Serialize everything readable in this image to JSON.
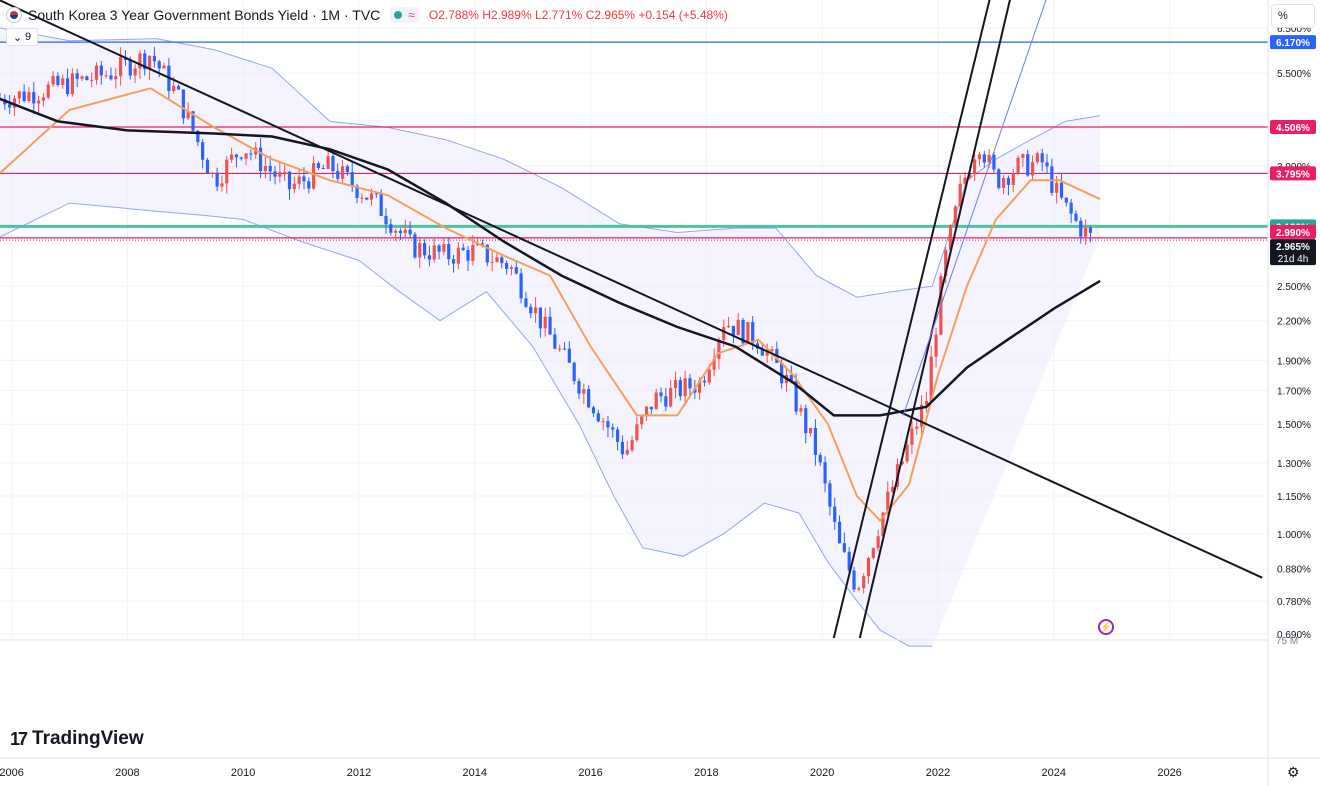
{
  "header": {
    "title": "South Korea 3 Year Government Bonds Yield · 1M · TVC",
    "open_label": "O",
    "open": "2.788%",
    "high_label": "H",
    "high": "2.989%",
    "low_label": "L",
    "low": "2.771%",
    "close_label": "C",
    "close": "2.965%",
    "change": "+0.154 (+5.48%)",
    "indicator_count": "9"
  },
  "scale_button": "%",
  "brand": "TradingView",
  "colors": {
    "up": "#ef5350",
    "down": "#2962ff",
    "bb": "#8fa8ef",
    "bb_fill": "#ede9fb",
    "ma_fast": "#f5a05a",
    "ma_slow": "#131722",
    "level_pink": "#e91e63",
    "level_blue": "#2962ff",
    "level_teal": "#4fc3a1"
  },
  "chart_data": {
    "type": "candlestick",
    "x_unit": "year",
    "y_unit": "percent (log scale)",
    "xlim": [
      2005.8,
      2027.7
    ],
    "ylim": [
      0.68,
      7.0
    ],
    "x_ticks": [
      "2006",
      "2008",
      "2010",
      "2012",
      "2014",
      "2016",
      "2018",
      "2020",
      "2022",
      "2024",
      "2026"
    ],
    "y_ticks": [
      "6.500%",
      "5.500%",
      "3.900%",
      "2.500%",
      "2.200%",
      "1.900%",
      "1.700%",
      "1.500%",
      "1.300%",
      "1.150%",
      "1.000%",
      "0.880%",
      "0.780%",
      "0.690%"
    ],
    "volume_axis_label": "75 M",
    "price_labels": [
      {
        "value": 6.17,
        "text": "6.170%",
        "color": "#2962ff"
      },
      {
        "value": 4.506,
        "text": "4.506%",
        "color": "#e91e63"
      },
      {
        "value": 3.795,
        "text": "3.795%",
        "color": "#e91e63"
      },
      {
        "value": 3.12,
        "text": "3.120%",
        "color": "#26a69a"
      },
      {
        "value": 2.99,
        "text": "2.990%",
        "color": "#e91e63"
      },
      {
        "value": 2.965,
        "text": "2.965%",
        "color": "#131722",
        "sub": "21d 4h"
      }
    ],
    "horizontal_levels": [
      {
        "value": 6.17,
        "color": "#2962ff"
      },
      {
        "value": 4.506,
        "color": "#e91e63"
      },
      {
        "value": 3.795,
        "color": "#e91e63"
      },
      {
        "value": 3.12,
        "color": "#4fc3a1"
      },
      {
        "value": 2.99,
        "color": "#e91e63"
      }
    ],
    "trendlines": [
      {
        "from": [
          2005.8,
          7.2
        ],
        "to": [
          2027.6,
          0.85
        ],
        "color": "#131722"
      },
      {
        "from": [
          2020.2,
          0.68
        ],
        "to": [
          2022.95,
          7.6
        ],
        "color": "#131722"
      },
      {
        "from": [
          2020.65,
          0.68
        ],
        "to": [
          2023.3,
          7.6
        ],
        "color": "#131722"
      },
      {
        "from": [
          2021.4,
          1.55
        ],
        "to": [
          2023.95,
          7.6
        ],
        "color": "#6a7ee8"
      }
    ],
    "path_x": [
      2005.8,
      2006.3,
      2007,
      2007.7,
      2008.4,
      2008.9,
      2009.5,
      2010.0,
      2010.8,
      2011.5,
      2012.3,
      2012.9,
      2013.5,
      2014.0,
      2014.6,
      2015.2,
      2015.8,
      2016.6,
      2017.1,
      2017.9,
      2018.3,
      2018.9,
      2019.4,
      2019.9,
      2020.3,
      2020.6,
      2021.0,
      2021.5,
      2021.8,
      2022.1,
      2022.4,
      2022.7,
      2023.0,
      2023.4,
      2023.8,
      2024.1,
      2024.4,
      2024.7
    ],
    "path_y": [
      5.0,
      5.1,
      5.3,
      5.5,
      5.9,
      5.0,
      3.7,
      4.2,
      3.6,
      3.9,
      3.4,
      2.9,
      2.8,
      2.85,
      2.7,
      2.15,
      1.75,
      1.35,
      1.65,
      1.75,
      2.2,
      2.05,
      1.75,
      1.35,
      0.95,
      0.82,
      1.05,
      1.4,
      1.65,
      2.7,
      3.6,
      4.3,
      3.7,
      3.9,
      3.95,
      3.45,
      3.15,
      2.95
    ],
    "ma_fast_x": [
      2005.8,
      2007,
      2008.4,
      2009.5,
      2010.5,
      2011.5,
      2012.5,
      2013.5,
      2014.5,
      2015.3,
      2016.0,
      2016.8,
      2017.5,
      2018.2,
      2018.9,
      2019.5,
      2020.1,
      2020.6,
      2021.0,
      2021.5,
      2022.0,
      2022.5,
      2023.0,
      2023.6,
      2024.1,
      2024.8
    ],
    "ma_fast_y": [
      3.8,
      4.8,
      5.2,
      4.5,
      4.0,
      3.7,
      3.5,
      3.1,
      2.8,
      2.6,
      2.0,
      1.55,
      1.55,
      1.95,
      2.05,
      1.8,
      1.5,
      1.15,
      1.05,
      1.2,
      1.8,
      2.5,
      3.2,
      3.7,
      3.7,
      3.45
    ],
    "ma_slow_x": [
      2005.8,
      2006.8,
      2008,
      2009.5,
      2010.5,
      2011.5,
      2012.5,
      2013.5,
      2014.5,
      2015.5,
      2016.5,
      2017.5,
      2018.5,
      2019.5,
      2020.2,
      2021.0,
      2021.8,
      2022.5,
      2023.2,
      2024.0,
      2024.8
    ],
    "ma_slow_y": [
      5.0,
      4.6,
      4.45,
      4.4,
      4.35,
      4.15,
      3.85,
      3.4,
      2.95,
      2.6,
      2.35,
      2.15,
      2.0,
      1.75,
      1.55,
      1.55,
      1.6,
      1.85,
      2.05,
      2.3,
      2.55
    ],
    "bb_upper_x": [
      2005.8,
      2007,
      2008.5,
      2009.5,
      2010.5,
      2011.5,
      2012.5,
      2013.5,
      2014.5,
      2015.5,
      2016.5,
      2017.5,
      2018.5,
      2019.2,
      2019.9,
      2020.6,
      2021.2,
      2021.9,
      2022.5,
      2023.0,
      2023.6,
      2024.2,
      2024.8
    ],
    "bb_upper_y": [
      6.5,
      6.2,
      6.25,
      6.0,
      5.6,
      4.6,
      4.5,
      4.3,
      4.0,
      3.6,
      3.15,
      3.05,
      3.1,
      3.1,
      2.6,
      2.4,
      2.45,
      2.5,
      3.7,
      4.0,
      4.3,
      4.6,
      4.7
    ],
    "bb_lower_x": [
      2005.8,
      2007,
      2008.5,
      2009.3,
      2010,
      2011,
      2012,
      2012.7,
      2013.4,
      2014.2,
      2015.0,
      2015.8,
      2016.4,
      2016.9,
      2017.6,
      2018.3,
      2019.0,
      2019.6,
      2020.1,
      2020.6,
      2021.0,
      2021.5,
      2021.9
    ],
    "bb_lower_y": [
      3.0,
      3.4,
      3.3,
      3.25,
      3.2,
      2.95,
      2.75,
      2.45,
      2.2,
      2.45,
      2.0,
      1.5,
      1.15,
      0.95,
      0.92,
      1.0,
      1.12,
      1.08,
      0.9,
      0.78,
      0.7,
      0.66,
      0.66
    ]
  }
}
